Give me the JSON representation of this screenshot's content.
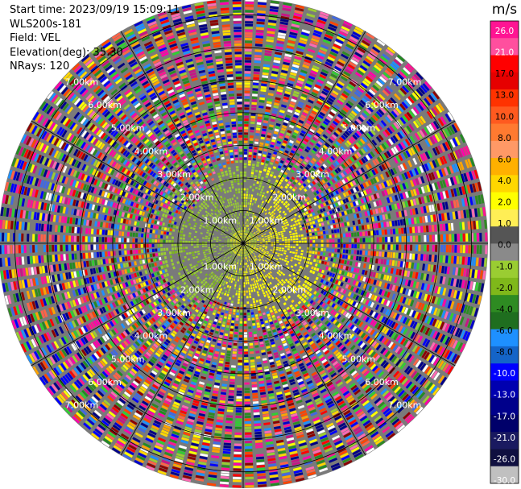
{
  "info": {
    "start_time": "Start time: 2023/09/19 15:09:11",
    "instrument": "WLS200s-181",
    "field": "Field: VEL",
    "elevation": "Elevation(deg): 35.30",
    "nrays": "NRays: 120"
  },
  "chart_data": {
    "type": "heatmap",
    "projection": "polar-ppi",
    "field": "VEL",
    "units": "m/s",
    "nrays": 120,
    "max_range_km": 7.5,
    "range_rings_km": [
      1,
      2,
      3,
      4,
      5,
      6,
      7
    ],
    "range_ring_labels": [
      "1.00km",
      "2.00km",
      "3.00km",
      "4.00km",
      "5.00km",
      "6.00km",
      "7.00km"
    ],
    "spokes_deg": [
      0,
      30,
      60,
      90,
      120,
      150,
      180,
      210,
      240,
      270,
      300,
      330
    ],
    "colorbar": {
      "label": "m/s",
      "ticks": [
        "26.0",
        "21.0",
        "17.0",
        "13.0",
        "10.0",
        "8.0",
        "6.0",
        "4.0",
        "2.0",
        "1.0",
        "0.0",
        "-1.0",
        "-2.0",
        "-4.0",
        "-6.0",
        "-8.0",
        "-10.0",
        "-13.0",
        "-17.0",
        "-21.0",
        "-26.0",
        "-30.0"
      ],
      "colors": [
        "#ff1493",
        "#ff4f9e",
        "#ff0000",
        "#e60000",
        "#ff3300",
        "#ff5a1f",
        "#ff7a30",
        "#ff9966",
        "#ffb000",
        "#ffd700",
        "#ffff00",
        "#ffee55",
        "#555555",
        "#8a8a8a",
        "#9acd32",
        "#7fb81a",
        "#2e8b22",
        "#1f6e1f",
        "#1e90ff",
        "#1464c8",
        "#0000ff",
        "#0000b0",
        "#00008b",
        "#00006a",
        "#1a1a60",
        "#101040",
        "#c0c0c0"
      ]
    }
  }
}
